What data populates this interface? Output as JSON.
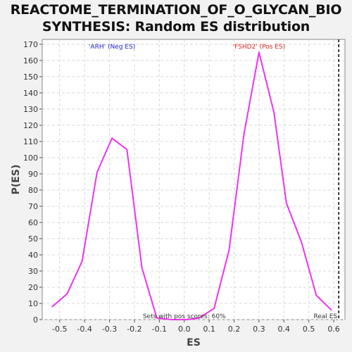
{
  "header": {
    "title_line1": "REACTOME_TERMINATION_OF_O_GLYCAN_BIO",
    "title_line2": "SYNTHESIS: Random ES distribution"
  },
  "colors": {
    "background": "#f2f2f2",
    "plot_background": "#ffffff",
    "curve": "#ee33ee",
    "neg_label": "#2222cc",
    "pos_label": "#dd2222",
    "grid": "#d8d8d8"
  },
  "chart_data": {
    "type": "line",
    "title": "REACTOME_TERMINATION_OF_O_GLYCAN_BIOSYNTHESIS: Random ES distribution",
    "xlabel": "ES",
    "ylabel": "P(ES)",
    "xlim": [
      -0.57,
      0.645
    ],
    "ylim": [
      0,
      173
    ],
    "x_ticks": [
      -0.5,
      -0.4,
      -0.3,
      -0.2,
      -0.1,
      0.0,
      0.1,
      0.2,
      0.3,
      0.4,
      0.5,
      0.6
    ],
    "x_tick_labels": [
      "-0.5",
      "-0.4",
      "-0.3",
      "-0.2",
      "-0.1",
      "0.0",
      "0.1",
      "0.2",
      "0.3",
      "0.4",
      "0.5",
      "0.6"
    ],
    "y_ticks": [
      0,
      10,
      20,
      30,
      40,
      50,
      60,
      70,
      80,
      90,
      100,
      110,
      120,
      130,
      140,
      150,
      160,
      170
    ],
    "grid": true,
    "series": [
      {
        "x": [
          -0.53,
          -0.47,
          -0.41,
          -0.35,
          -0.29,
          -0.23,
          -0.17,
          -0.11,
          -0.05,
          0.01,
          0.06,
          0.12,
          0.18,
          0.24,
          0.3,
          0.36,
          0.41,
          0.47,
          0.53,
          0.59
        ],
        "y": [
          8,
          16,
          36,
          91,
          112,
          105,
          32,
          1,
          0,
          0,
          1,
          7,
          43,
          115,
          165,
          128,
          72,
          48,
          15,
          6
        ]
      }
    ],
    "annotations": {
      "neg": "'ARH' (Neg ES)",
      "pos": "'FSHD2' (Pos ES)",
      "sets_text": "Sets with pos scores: 60%",
      "real_es": "Real ES"
    },
    "real_es_value": 0.62
  }
}
